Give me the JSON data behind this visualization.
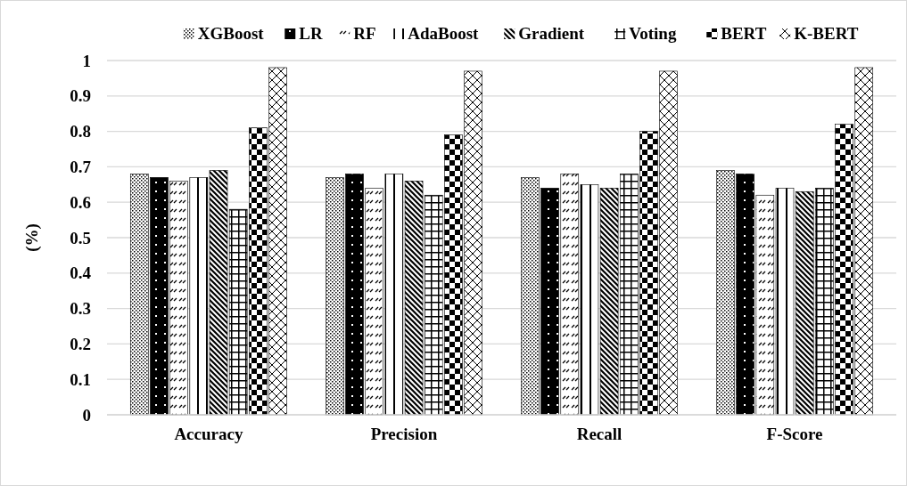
{
  "chart_data": {
    "type": "bar",
    "ylabel": "(%)",
    "categories": [
      "Accuracy",
      "Precision",
      "Recall",
      "F-Score"
    ],
    "series": [
      {
        "name": "XGBoost",
        "color": "#000000",
        "values": [
          0.68,
          0.67,
          0.67,
          0.69
        ]
      },
      {
        "name": "LR",
        "color": "#000000",
        "values": [
          0.67,
          0.68,
          0.64,
          0.68
        ]
      },
      {
        "name": "RF",
        "color": "#000000",
        "values": [
          0.66,
          0.64,
          0.68,
          0.62
        ]
      },
      {
        "name": "AdaBoost",
        "color": "#000000",
        "values": [
          0.67,
          0.68,
          0.65,
          0.64
        ]
      },
      {
        "name": "Gradient",
        "color": "#000000",
        "values": [
          0.69,
          0.66,
          0.64,
          0.63
        ]
      },
      {
        "name": "Voting",
        "color": "#000000",
        "values": [
          0.58,
          0.62,
          0.68,
          0.64
        ]
      },
      {
        "name": "BERT",
        "color": "#000000",
        "values": [
          0.81,
          0.79,
          0.8,
          0.82
        ]
      },
      {
        "name": "K-BERT",
        "color": "#000000",
        "values": [
          0.98,
          0.97,
          0.97,
          0.98
        ]
      }
    ],
    "ylim": [
      0,
      1
    ],
    "yticks": [
      0,
      0.1,
      0.2,
      0.3,
      0.4,
      0.5,
      0.6,
      0.7,
      0.8,
      0.9,
      1
    ],
    "grid": "y",
    "legend": "top"
  }
}
